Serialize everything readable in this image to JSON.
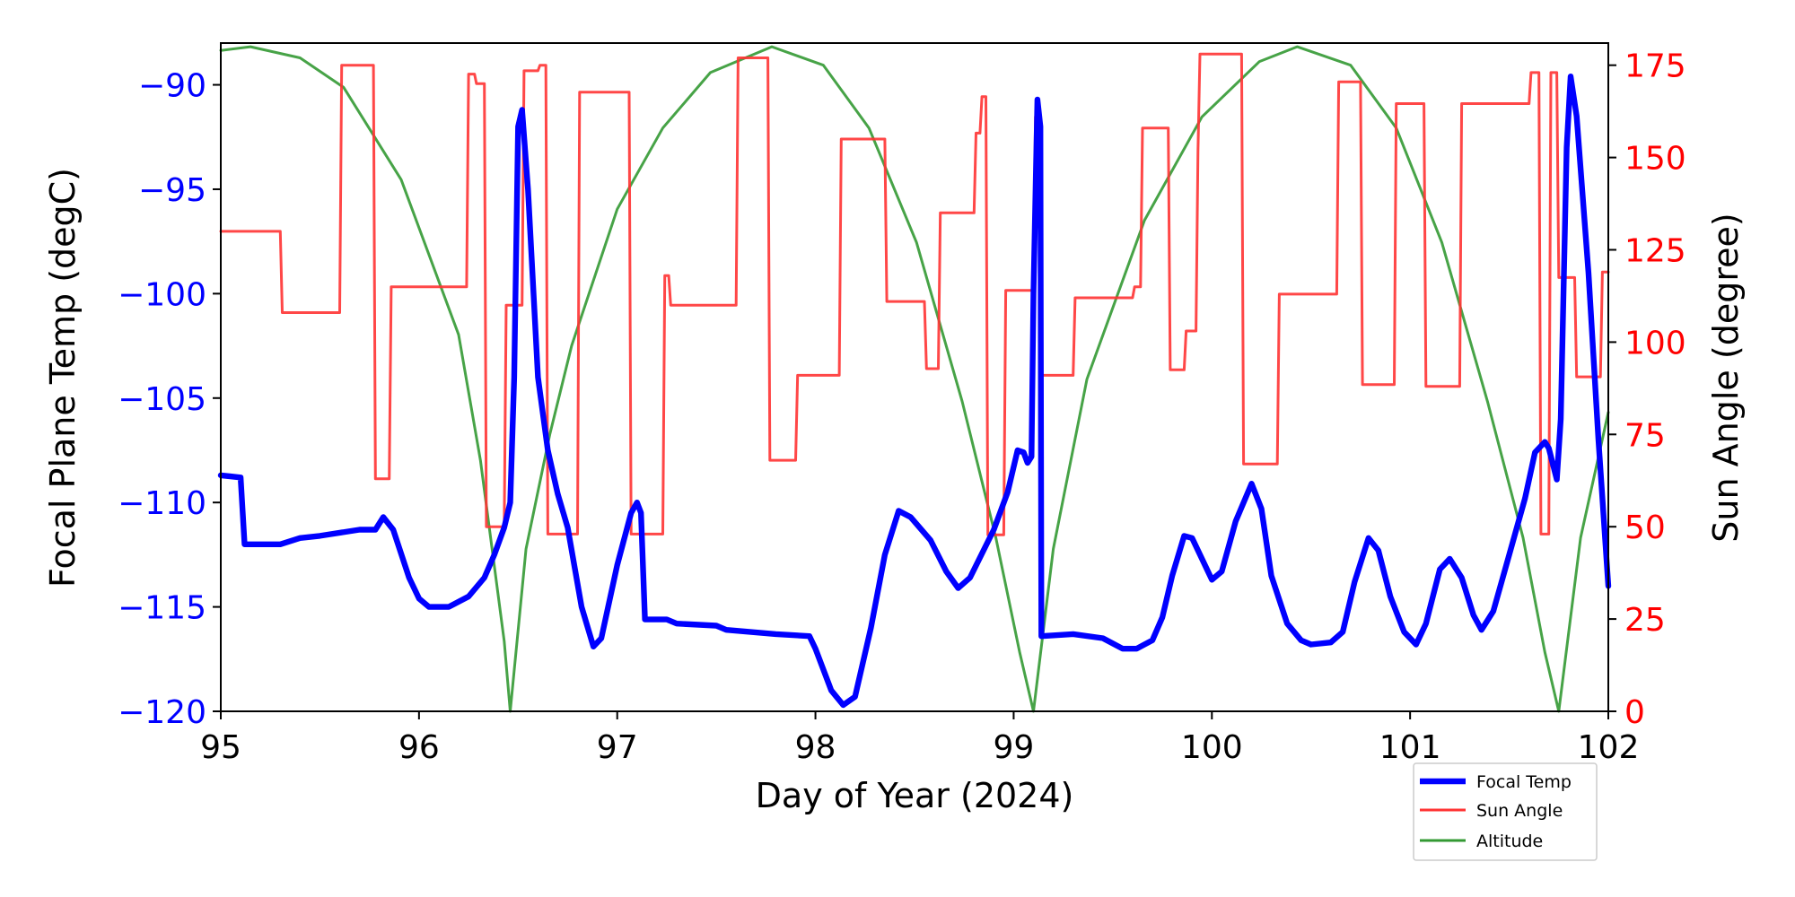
{
  "chart_data": {
    "type": "line",
    "title": "",
    "xlabel": "Day of Year (2024)",
    "ylabel_left": "Focal Plane Temp (degC)",
    "ylabel_right": "Sun Angle (degree)",
    "xlim": [
      95,
      102
    ],
    "ylim_left": [
      -120,
      -88
    ],
    "ylim_right": [
      0,
      181
    ],
    "x_ticks": [
      95,
      96,
      97,
      98,
      99,
      100,
      101,
      102
    ],
    "y_ticks_left": [
      -120,
      -115,
      -110,
      -105,
      -100,
      -95,
      -90
    ],
    "y_ticks_right": [
      0,
      25,
      50,
      75,
      100,
      125,
      150,
      175
    ],
    "grid": false,
    "legend_position": "below-right",
    "colors": {
      "left_axis": "#0000ff",
      "right_axis": "#ff0000"
    },
    "series": [
      {
        "name": "Focal Temp",
        "axis": "left",
        "color": "#0000ff",
        "x": [
          95.0,
          95.1,
          95.12,
          95.3,
          95.4,
          95.5,
          95.7,
          95.78,
          95.82,
          95.87,
          95.95,
          96.0,
          96.05,
          96.15,
          96.25,
          96.33,
          96.38,
          96.43,
          96.46,
          96.48,
          96.5,
          96.52,
          96.55,
          96.6,
          96.65,
          96.7,
          96.75,
          96.82,
          96.88,
          96.92,
          97.0,
          97.07,
          97.1,
          97.12,
          97.14,
          97.25,
          97.3,
          97.5,
          97.55,
          97.8,
          97.97,
          98.0,
          98.08,
          98.14,
          98.2,
          98.28,
          98.35,
          98.42,
          98.48,
          98.58,
          98.66,
          98.72,
          98.78,
          98.9,
          98.97,
          99.02,
          99.05,
          99.07,
          99.09,
          99.1,
          99.12,
          99.135,
          99.14,
          99.3,
          99.45,
          99.55,
          99.62,
          99.7,
          99.75,
          99.8,
          99.86,
          99.9,
          99.97,
          100.0,
          100.05,
          100.12,
          100.2,
          100.25,
          100.3,
          100.38,
          100.45,
          100.5,
          100.6,
          100.66,
          100.72,
          100.79,
          100.84,
          100.9,
          100.97,
          101.03,
          101.08,
          101.15,
          101.2,
          101.26,
          101.32,
          101.36,
          101.42,
          101.5,
          101.58,
          101.63,
          101.68,
          101.7,
          101.74,
          101.76,
          101.79,
          101.81,
          101.84,
          101.9,
          101.95,
          102.0
        ],
        "y": [
          -108.7,
          -108.8,
          -112.0,
          -112.0,
          -111.7,
          -111.6,
          -111.3,
          -111.3,
          -110.7,
          -111.3,
          -113.6,
          -114.6,
          -115.0,
          -115.0,
          -114.5,
          -113.6,
          -112.5,
          -111.2,
          -110.0,
          -104,
          -92,
          -91.2,
          -95,
          -104,
          -107.5,
          -109.6,
          -111.2,
          -115,
          -116.9,
          -116.5,
          -113,
          -110.5,
          -110,
          -110.5,
          -115.6,
          -115.6,
          -115.8,
          -115.9,
          -116.1,
          -116.3,
          -116.4,
          -117,
          -119,
          -119.7,
          -119.3,
          -116,
          -112.5,
          -110.4,
          -110.7,
          -111.8,
          -113.3,
          -114.1,
          -113.6,
          -111.3,
          -109.5,
          -107.5,
          -107.6,
          -108.1,
          -107.8,
          -100,
          -90.7,
          -92,
          -116.4,
          -116.3,
          -116.5,
          -117.0,
          -117.0,
          -116.6,
          -115.5,
          -113.5,
          -111.6,
          -111.7,
          -113.1,
          -113.7,
          -113.3,
          -110.9,
          -109.1,
          -110.3,
          -113.5,
          -115.8,
          -116.6,
          -116.8,
          -116.7,
          -116.2,
          -113.8,
          -111.7,
          -112.3,
          -114.5,
          -116.2,
          -116.8,
          -115.8,
          -113.2,
          -112.7,
          -113.6,
          -115.4,
          -116.1,
          -115.2,
          -112.5,
          -109.8,
          -107.6,
          -107.1,
          -107.4,
          -108.9,
          -106,
          -93,
          -89.6,
          -91.5,
          -99,
          -107,
          -114
        ]
      },
      {
        "name": "Sun Angle",
        "axis": "right",
        "color": "#ff3333",
        "x": [
          95.0,
          95.3,
          95.31,
          95.6,
          95.61,
          95.77,
          95.78,
          95.85,
          95.86,
          96.24,
          96.25,
          96.28,
          96.29,
          96.33,
          96.34,
          96.43,
          96.44,
          96.52,
          96.53,
          96.6,
          96.61,
          96.64,
          96.65,
          96.8,
          96.81,
          97.06,
          97.07,
          97.23,
          97.24,
          97.26,
          97.27,
          97.6,
          97.61,
          97.76,
          97.77,
          97.9,
          97.91,
          98.12,
          98.13,
          98.35,
          98.36,
          98.55,
          98.56,
          98.62,
          98.63,
          98.8,
          98.81,
          98.83,
          98.84,
          98.86,
          98.87,
          98.95,
          98.96,
          99.1,
          99.11,
          99.13,
          99.14,
          99.3,
          99.31,
          99.6,
          99.61,
          99.64,
          99.65,
          99.78,
          99.79,
          99.86,
          99.87,
          99.92,
          99.93,
          99.94,
          100.15,
          100.16,
          100.33,
          100.34,
          100.63,
          100.64,
          100.75,
          100.76,
          100.92,
          100.93,
          101.07,
          101.08,
          101.25,
          101.26,
          101.6,
          101.61,
          101.65,
          101.66,
          101.7,
          101.71,
          101.74,
          101.75,
          101.83,
          101.84,
          101.96,
          101.97,
          102.0
        ],
        "y": [
          130,
          130,
          108,
          108,
          175,
          175,
          63,
          63,
          115,
          115,
          172.6,
          172.6,
          170,
          170,
          50,
          50,
          110,
          110,
          173.5,
          173.5,
          175,
          175,
          48,
          48,
          167.7,
          167.7,
          48,
          48,
          118,
          118,
          110,
          110,
          177,
          177,
          68,
          68,
          91,
          91,
          155,
          155,
          111,
          111,
          92.8,
          92.8,
          135,
          135,
          156.6,
          156.6,
          166.5,
          166.5,
          47.8,
          47.8,
          114,
          114,
          161,
          161,
          91,
          91,
          112,
          112,
          115,
          115,
          158,
          158,
          92.5,
          92.5,
          103,
          103,
          151.7,
          178,
          178,
          67,
          67,
          113,
          113,
          170.5,
          170.5,
          88.5,
          88.5,
          164.6,
          164.6,
          88,
          88,
          164.6,
          164.6,
          173,
          173,
          48,
          48,
          173,
          173,
          117.5,
          117.5,
          90.6,
          90.6,
          119,
          119
        ]
      },
      {
        "name": "Altitude",
        "axis": "right",
        "color": "#339933",
        "x": [
          95.0,
          95.15,
          95.4,
          95.62,
          95.91,
          96.2,
          96.31,
          96.43,
          96.46,
          96.54,
          96.66,
          96.77,
          97.0,
          97.23,
          97.47,
          97.78,
          98.04,
          98.27,
          98.51,
          98.74,
          98.91,
          99.03,
          99.1,
          99.2,
          99.37,
          99.66,
          99.95,
          100.24,
          100.43,
          100.7,
          100.93,
          101.16,
          101.39,
          101.57,
          101.68,
          101.75,
          101.86,
          102.0
        ],
        "y": [
          179,
          180,
          177,
          169,
          144,
          102,
          68,
          19,
          0,
          44,
          75,
          99,
          136,
          158,
          173,
          180,
          175,
          158,
          127,
          84,
          47,
          16,
          0,
          44,
          90,
          133,
          161,
          176,
          180,
          175,
          158,
          127,
          84,
          47,
          16,
          0,
          47,
          81
        ]
      }
    ]
  }
}
